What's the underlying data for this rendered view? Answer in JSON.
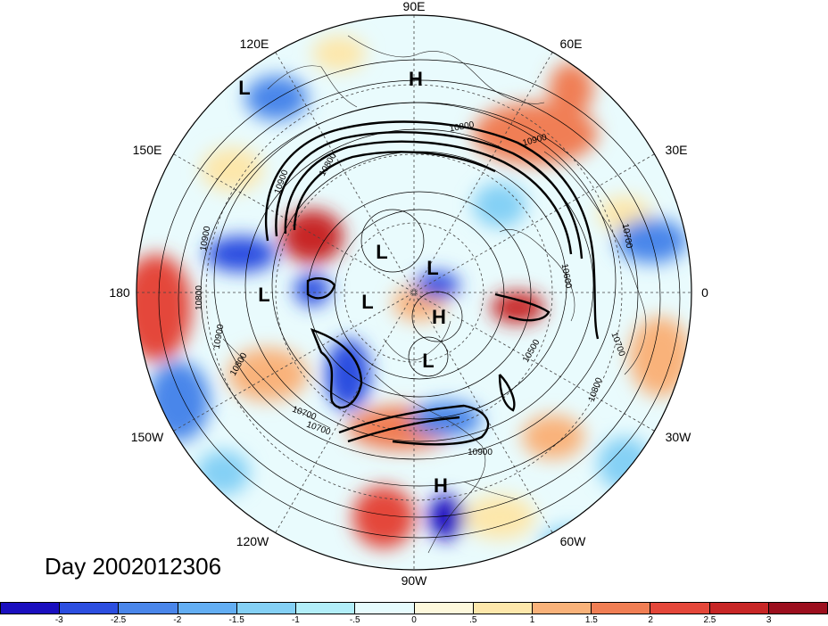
{
  "title": "Day 2002012306",
  "longitude_labels": [
    {
      "id": "90e",
      "text": "90E"
    },
    {
      "id": "60e",
      "text": "60E"
    },
    {
      "id": "30e",
      "text": "30E"
    },
    {
      "id": "0",
      "text": "0"
    },
    {
      "id": "30w",
      "text": "30W"
    },
    {
      "id": "60w",
      "text": "60W"
    },
    {
      "id": "90w",
      "text": "90W"
    },
    {
      "id": "120w",
      "text": "120W"
    },
    {
      "id": "150w",
      "text": "150W"
    },
    {
      "id": "180",
      "text": "180"
    },
    {
      "id": "150e",
      "text": "150E"
    },
    {
      "id": "120e",
      "text": "120E"
    }
  ],
  "pressure_centers": [
    {
      "type": "H"
    },
    {
      "type": "L"
    },
    {
      "type": "L"
    },
    {
      "type": "L"
    },
    {
      "type": "L"
    },
    {
      "type": "L"
    },
    {
      "type": "H"
    },
    {
      "type": "L"
    },
    {
      "type": "H"
    }
  ],
  "contour_labels": [
    "10800",
    "10900",
    "10900",
    "10900",
    "10800",
    "10700",
    "10600",
    "10700",
    "10800",
    "10900",
    "10500",
    "10700",
    "10800",
    "10900",
    "10700",
    "10800"
  ],
  "colorbar": {
    "colors": [
      "#1a0fbf",
      "#2c4ee0",
      "#4a86ea",
      "#63aef3",
      "#84d0f5",
      "#b2eef9",
      "#e6fbfd",
      "#fdf8dc",
      "#fde7ab",
      "#f9b27a",
      "#f07e54",
      "#e4473a",
      "#c82626",
      "#9c0f1e"
    ],
    "tick_labels": [
      "-3",
      "-2.5",
      "-2",
      "-1.5",
      "-1",
      "-.5",
      "0",
      ".5",
      "1",
      "1.5",
      "2",
      "2.5",
      "3"
    ]
  }
}
